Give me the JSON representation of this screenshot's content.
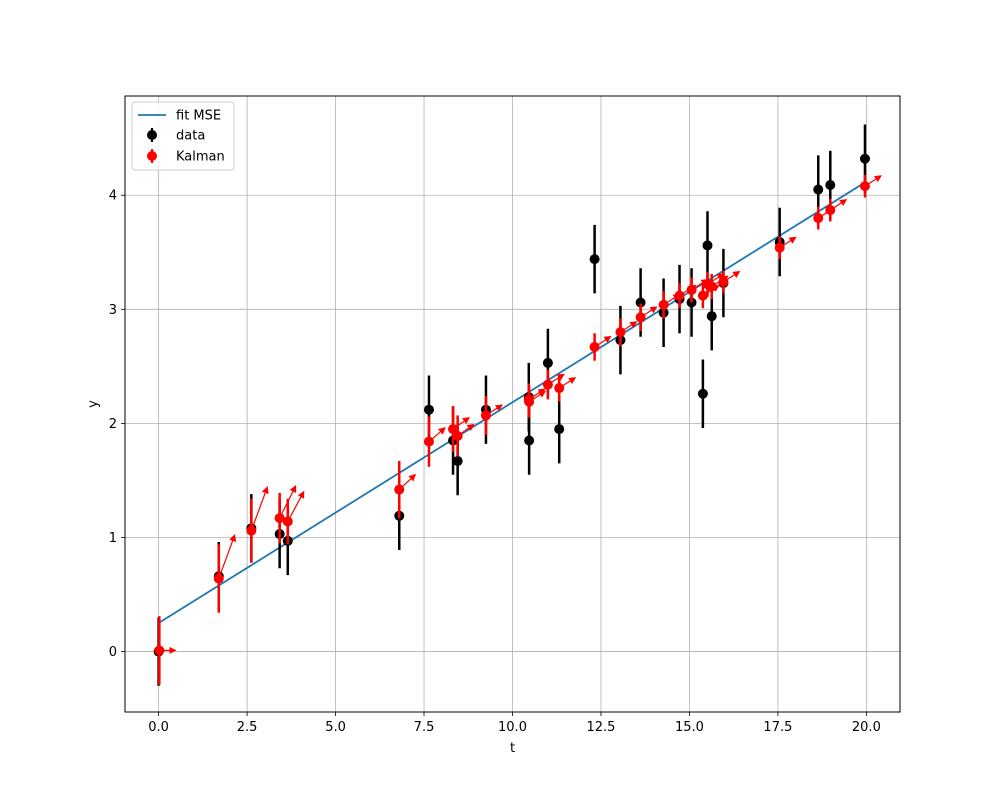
{
  "chart_data": {
    "type": "scatter",
    "title": "",
    "xlabel": "t",
    "ylabel": "y",
    "xlim": [
      -0.95,
      20.95
    ],
    "ylim": [
      -0.53,
      4.87
    ],
    "grid": true,
    "legend_position": "top-left",
    "xticks": [
      "0.0",
      "2.5",
      "5.0",
      "7.5",
      "10.0",
      "12.5",
      "15.0",
      "17.5",
      "20.0"
    ],
    "yticks": [
      "0",
      "1",
      "2",
      "3",
      "4"
    ],
    "colors": {
      "fit": "#1f77b4",
      "data": "#000000",
      "kalman": "#ff0000"
    },
    "fit_line": {
      "name": "fit MSE",
      "x": [
        0.0,
        20.0
      ],
      "y": [
        0.25,
        4.12
      ]
    },
    "data": {
      "name": "data",
      "points": [
        {
          "x": 0.0,
          "y": 0.0,
          "err": 0.3
        },
        {
          "x": 1.7,
          "y": 0.66,
          "err": 0.3
        },
        {
          "x": 2.62,
          "y": 1.08,
          "err": 0.3
        },
        {
          "x": 3.42,
          "y": 1.03,
          "err": 0.3
        },
        {
          "x": 3.65,
          "y": 0.97,
          "err": 0.3
        },
        {
          "x": 6.8,
          "y": 1.19,
          "err": 0.3
        },
        {
          "x": 7.64,
          "y": 2.12,
          "err": 0.3
        },
        {
          "x": 8.32,
          "y": 1.85,
          "err": 0.3
        },
        {
          "x": 8.45,
          "y": 1.67,
          "err": 0.3
        },
        {
          "x": 9.25,
          "y": 2.12,
          "err": 0.3
        },
        {
          "x": 10.46,
          "y": 2.23,
          "err": 0.3
        },
        {
          "x": 10.47,
          "y": 1.85,
          "err": 0.3
        },
        {
          "x": 11.0,
          "y": 2.53,
          "err": 0.3
        },
        {
          "x": 11.32,
          "y": 1.95,
          "err": 0.3
        },
        {
          "x": 12.32,
          "y": 3.44,
          "err": 0.3
        },
        {
          "x": 13.05,
          "y": 2.73,
          "err": 0.3
        },
        {
          "x": 13.62,
          "y": 3.06,
          "err": 0.3
        },
        {
          "x": 14.27,
          "y": 2.97,
          "err": 0.3
        },
        {
          "x": 14.72,
          "y": 3.09,
          "err": 0.3
        },
        {
          "x": 15.06,
          "y": 3.06,
          "err": 0.3
        },
        {
          "x": 15.38,
          "y": 2.26,
          "err": 0.3
        },
        {
          "x": 15.51,
          "y": 3.56,
          "err": 0.3
        },
        {
          "x": 15.63,
          "y": 2.94,
          "err": 0.3
        },
        {
          "x": 15.96,
          "y": 3.23,
          "err": 0.3
        },
        {
          "x": 17.55,
          "y": 3.59,
          "err": 0.3
        },
        {
          "x": 18.64,
          "y": 4.05,
          "err": 0.3
        },
        {
          "x": 18.98,
          "y": 4.09,
          "err": 0.3
        },
        {
          "x": 19.96,
          "y": 4.32,
          "err": 0.3
        }
      ]
    },
    "kalman": {
      "name": "Kalman",
      "points": [
        {
          "x": 0.02,
          "y": 0.01,
          "err": 0.3,
          "dx": 0.45,
          "dy": 0.0
        },
        {
          "x": 1.7,
          "y": 0.64,
          "err": 0.3,
          "dx": 0.45,
          "dy": 0.38
        },
        {
          "x": 2.62,
          "y": 1.06,
          "err": 0.28,
          "dx": 0.45,
          "dy": 0.38
        },
        {
          "x": 3.42,
          "y": 1.17,
          "err": 0.22,
          "dx": 0.45,
          "dy": 0.28
        },
        {
          "x": 3.65,
          "y": 1.14,
          "err": 0.2,
          "dx": 0.45,
          "dy": 0.26
        },
        {
          "x": 6.8,
          "y": 1.42,
          "err": 0.25,
          "dx": 0.45,
          "dy": 0.13
        },
        {
          "x": 7.64,
          "y": 1.84,
          "err": 0.22,
          "dx": 0.45,
          "dy": 0.12
        },
        {
          "x": 8.32,
          "y": 1.95,
          "err": 0.2,
          "dx": 0.45,
          "dy": 0.1
        },
        {
          "x": 8.45,
          "y": 1.89,
          "err": 0.18,
          "dx": 0.45,
          "dy": 0.1
        },
        {
          "x": 9.25,
          "y": 2.07,
          "err": 0.17,
          "dx": 0.45,
          "dy": 0.09
        },
        {
          "x": 10.46,
          "y": 2.21,
          "err": 0.14,
          "dx": 0.45,
          "dy": 0.09
        },
        {
          "x": 10.47,
          "y": 2.19,
          "err": 0.14,
          "dx": 0.45,
          "dy": 0.09
        },
        {
          "x": 11.0,
          "y": 2.34,
          "err": 0.13,
          "dx": 0.45,
          "dy": 0.09
        },
        {
          "x": 11.32,
          "y": 2.31,
          "err": 0.12,
          "dx": 0.45,
          "dy": 0.09
        },
        {
          "x": 12.32,
          "y": 2.67,
          "err": 0.12,
          "dx": 0.45,
          "dy": 0.09
        },
        {
          "x": 13.05,
          "y": 2.8,
          "err": 0.12,
          "dx": 0.45,
          "dy": 0.09
        },
        {
          "x": 13.62,
          "y": 2.93,
          "err": 0.12,
          "dx": 0.45,
          "dy": 0.09
        },
        {
          "x": 14.27,
          "y": 3.04,
          "err": 0.12,
          "dx": 0.45,
          "dy": 0.09
        },
        {
          "x": 14.72,
          "y": 3.12,
          "err": 0.11,
          "dx": 0.45,
          "dy": 0.09
        },
        {
          "x": 15.06,
          "y": 3.17,
          "err": 0.11,
          "dx": 0.45,
          "dy": 0.09
        },
        {
          "x": 15.38,
          "y": 3.12,
          "err": 0.11,
          "dx": 0.45,
          "dy": 0.09
        },
        {
          "x": 15.51,
          "y": 3.22,
          "err": 0.11,
          "dx": 0.45,
          "dy": 0.09
        },
        {
          "x": 15.63,
          "y": 3.2,
          "err": 0.11,
          "dx": 0.45,
          "dy": 0.09
        },
        {
          "x": 15.96,
          "y": 3.24,
          "err": 0.1,
          "dx": 0.45,
          "dy": 0.09
        },
        {
          "x": 17.55,
          "y": 3.54,
          "err": 0.1,
          "dx": 0.45,
          "dy": 0.09
        },
        {
          "x": 18.64,
          "y": 3.8,
          "err": 0.1,
          "dx": 0.45,
          "dy": 0.09
        },
        {
          "x": 18.98,
          "y": 3.87,
          "err": 0.1,
          "dx": 0.45,
          "dy": 0.09
        },
        {
          "x": 19.96,
          "y": 4.08,
          "err": 0.1,
          "dx": 0.45,
          "dy": 0.09
        }
      ]
    }
  }
}
